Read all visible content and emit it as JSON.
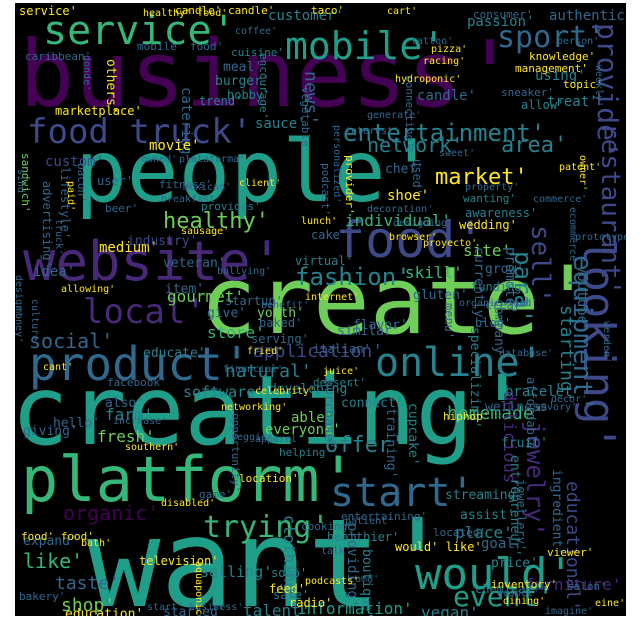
{
  "palette": {
    "purple": "#440154",
    "indigo": "#482878",
    "blue": "#3e4989",
    "slate": "#31688e",
    "teal": "#26828e",
    "sea": "#1f9e89",
    "green": "#35b779",
    "lime": "#6ece58",
    "yellow": "#fde725"
  },
  "words": [
    {
      "text": "business'",
      "color": "purple"
    },
    {
      "text": "people'",
      "color": "sea"
    },
    {
      "text": "want'",
      "color": "sea"
    },
    {
      "text": "creating'",
      "color": "sea"
    },
    {
      "text": "create'",
      "color": "lime"
    },
    {
      "text": "food'",
      "color": "blue"
    },
    {
      "text": "website'",
      "color": "indigo"
    },
    {
      "text": "platform'",
      "color": "green"
    },
    {
      "text": "product'",
      "color": "slate"
    },
    {
      "text": "service'",
      "color": "green"
    },
    {
      "text": "mobile'",
      "color": "sea"
    },
    {
      "text": "would'",
      "color": "sea"
    },
    {
      "text": "online'",
      "color": "teal"
    },
    {
      "text": "start'",
      "color": "slate"
    },
    {
      "text": "food truck'",
      "color": "blue"
    },
    {
      "text": "sport'",
      "color": "slate"
    },
    {
      "text": "local'",
      "color": "indigo"
    },
    {
      "text": "trying'",
      "color": "green"
    },
    {
      "text": "entertainment'",
      "color": "teal"
    },
    {
      "text": "looking'",
      "color": "blue"
    },
    {
      "text": "provide'",
      "color": "blue"
    },
    {
      "text": "restaurant'",
      "color": "blue"
    },
    {
      "text": "fashion'",
      "color": "teal"
    },
    {
      "text": "network'",
      "color": "teal"
    },
    {
      "text": "area'",
      "color": "teal"
    },
    {
      "text": "market'",
      "color": "yellow"
    },
    {
      "text": "healthy'",
      "color": "lime"
    },
    {
      "text": "social'",
      "color": "slate"
    },
    {
      "text": "event'",
      "color": "sea"
    },
    {
      "text": "organic'",
      "color": "purple"
    },
    {
      "text": "equipment'",
      "color": "slate"
    },
    {
      "text": "starting'",
      "color": "teal"
    },
    {
      "text": "jewelry'",
      "color": "indigo"
    },
    {
      "text": "sell'",
      "color": "blue"
    },
    {
      "text": "para'",
      "color": "teal"
    },
    {
      "text": "homemade'",
      "color": "green"
    },
    {
      "text": "natural'",
      "color": "teal"
    },
    {
      "text": "application'",
      "color": "blue"
    },
    {
      "text": "offer'",
      "color": "teal"
    },
    {
      "text": "shop'",
      "color": "lime"
    },
    {
      "text": "taste'",
      "color": "slate"
    },
    {
      "text": "like'",
      "color": "green"
    },
    {
      "text": "fresh'",
      "color": "lime"
    },
    {
      "text": "farm'",
      "color": "teal"
    },
    {
      "text": "place'",
      "color": "teal"
    },
    {
      "text": "goal'",
      "color": "slate"
    },
    {
      "text": "store'",
      "color": "green"
    },
    {
      "text": "youtube'",
      "color": "slate"
    },
    {
      "text": "gourmet'",
      "color": "lime"
    },
    {
      "text": "individual'",
      "color": "green"
    },
    {
      "text": "skill'",
      "color": "green"
    },
    {
      "text": "site'",
      "color": "lime"
    },
    {
      "text": "customer'",
      "color": "teal"
    },
    {
      "text": "passion'",
      "color": "teal"
    },
    {
      "text": "authentic'",
      "color": "slate"
    },
    {
      "text": "educational'",
      "color": "blue"
    },
    {
      "text": "vegan'",
      "color": "teal"
    },
    {
      "text": "clothing'",
      "color": "teal"
    },
    {
      "text": "talent'",
      "color": "teal"
    },
    {
      "text": "information'",
      "color": "sea"
    },
    {
      "text": "started'",
      "color": "slate"
    },
    {
      "text": "education'",
      "color": "yellow"
    },
    {
      "text": "selling'",
      "color": "teal"
    },
    {
      "text": "software'",
      "color": "teal"
    },
    {
      "text": "medium'",
      "color": "yellow"
    },
    {
      "text": "news'",
      "color": "slate"
    },
    {
      "text": "custom'",
      "color": "blue"
    },
    {
      "text": "idea'",
      "color": "slate"
    },
    {
      "text": "catering'",
      "color": "slate"
    },
    {
      "text": "treat'",
      "color": "teal"
    },
    {
      "text": "using'",
      "color": "teal"
    },
    {
      "text": "candle'",
      "color": "slate"
    },
    {
      "text": "burger'",
      "color": "teal"
    },
    {
      "text": "meal'",
      "color": "slate"
    },
    {
      "text": "hobby'",
      "color": "teal"
    },
    {
      "text": "sauce'",
      "color": "teal"
    },
    {
      "text": "movie'",
      "color": "yellow"
    },
    {
      "text": "chef'",
      "color": "slate"
    },
    {
      "text": "shoe'",
      "color": "yellow"
    },
    {
      "text": "veteran'",
      "color": "slate"
    },
    {
      "text": "industry'",
      "color": "blue"
    },
    {
      "text": "give'",
      "color": "slate"
    },
    {
      "text": "item'",
      "color": "slate"
    },
    {
      "text": "educate'",
      "color": "teal"
    },
    {
      "text": "able'",
      "color": "lime"
    },
    {
      "text": "everyone'",
      "color": "lime"
    },
    {
      "text": "also'",
      "color": "slate"
    },
    {
      "text": "hello'",
      "color": "slate"
    },
    {
      "text": "expand'",
      "color": "slate"
    },
    {
      "text": "giving'",
      "color": "slate"
    },
    {
      "text": "delicious'",
      "color": "indigo"
    },
    {
      "text": "purchase'",
      "color": "slate"
    },
    {
      "text": "training'",
      "color": "slate"
    },
    {
      "text": "cupcake'",
      "color": "teal"
    },
    {
      "text": "bracelet'",
      "color": "teal"
    },
    {
      "text": "wellness'",
      "color": "slate"
    },
    {
      "text": "fruit'",
      "color": "teal"
    },
    {
      "text": "streaming'",
      "color": "teal"
    },
    {
      "text": "assist'",
      "color": "teal"
    },
    {
      "text": "price'",
      "color": "teal"
    },
    {
      "text": "providing'",
      "color": "slate"
    },
    {
      "text": "connect'",
      "color": "teal"
    },
    {
      "text": "developing'",
      "color": "teal"
    },
    {
      "text": "similar'",
      "color": "slate"
    },
    {
      "text": "specializing'",
      "color": "teal"
    },
    {
      "text": "promote'",
      "color": "slate"
    },
    {
      "text": "company'",
      "color": "slate"
    },
    {
      "text": "affordable'",
      "color": "slate"
    },
    {
      "text": "entrepreneur'",
      "color": "teal"
    },
    {
      "text": "jewellery'",
      "color": "slate"
    },
    {
      "text": "ingredient'",
      "color": "slate"
    },
    {
      "text": "furniture'",
      "color": "indigo"
    },
    {
      "text": "chemical'",
      "color": "teal"
    },
    {
      "text": "boutique'",
      "color": "teal"
    },
    {
      "text": "feed'",
      "color": "yellow"
    },
    {
      "text": "soap'",
      "color": "teal"
    },
    {
      "text": "safe'",
      "color": "teal"
    },
    {
      "text": "radio'",
      "color": "yellow"
    },
    {
      "text": "vegetable'",
      "color": "slate"
    },
    {
      "text": "interest'",
      "color": "slate"
    },
    {
      "text": "grow'",
      "color": "slate"
    },
    {
      "text": "gluten'",
      "color": "slate"
    },
    {
      "text": "blog'",
      "color": "slate"
    },
    {
      "text": "currently'",
      "color": "slate"
    },
    {
      "text": "funding'",
      "color": "teal"
    },
    {
      "text": "crear'",
      "color": "slate"
    },
    {
      "text": "menu'",
      "color": "slate"
    },
    {
      "text": "flavor'",
      "color": "slate"
    },
    {
      "text": "italian'",
      "color": "slate"
    },
    {
      "text": "youth'",
      "color": "lime"
    },
    {
      "text": "baked'",
      "color": "slate"
    },
    {
      "text": "serving'",
      "color": "slate"
    },
    {
      "text": "startup'",
      "color": "slate"
    },
    {
      "text": "cake'",
      "color": "slate"
    },
    {
      "text": "virtual'",
      "color": "teal"
    },
    {
      "text": "wedding'",
      "color": "yellow"
    },
    {
      "text": "awareness'",
      "color": "teal"
    },
    {
      "text": "consumer'",
      "color": "slate"
    },
    {
      "text": "knowledge'",
      "color": "yellow"
    },
    {
      "text": "management'",
      "color": "yellow"
    },
    {
      "text": "topic'",
      "color": "yellow"
    },
    {
      "text": "sneaker'",
      "color": "slate"
    },
    {
      "text": "allow'",
      "color": "teal"
    },
    {
      "text": "others'",
      "color": "yellow"
    },
    {
      "text": "encourage'",
      "color": "teal"
    },
    {
      "text": "connecting'",
      "color": "slate"
    },
    {
      "text": "cuisine'",
      "color": "teal"
    },
    {
      "text": "trend'",
      "color": "teal"
    },
    {
      "text": "marketplace'",
      "color": "yellow"
    },
    {
      "text": "caribbean'",
      "color": "slate"
    },
    {
      "text": "sandwich'",
      "color": "lime"
    },
    {
      "text": "advertising'",
      "color": "slate"
    },
    {
      "text": "lifestyle'",
      "color": "slate"
    },
    {
      "text": "user'",
      "color": "slate"
    },
    {
      "text": "bacon'",
      "color": "slate"
    },
    {
      "text": "beer'",
      "color": "slate"
    },
    {
      "text": "fitness'",
      "color": "slate"
    },
    {
      "text": "podcast'",
      "color": "slate"
    },
    {
      "text": "personalized'",
      "color": "slate"
    },
    {
      "text": "provider'",
      "color": "yellow"
    },
    {
      "text": "used'",
      "color": "slate"
    },
    {
      "text": "wanting'",
      "color": "teal"
    },
    {
      "text": "salon'",
      "color": "slate"
    },
    {
      "text": "bakery'",
      "color": "slate"
    },
    {
      "text": "television'",
      "color": "yellow"
    },
    {
      "text": "healthier'",
      "color": "teal"
    },
    {
      "text": "cooking'",
      "color": "slate"
    },
    {
      "text": "entertaining'",
      "color": "slate"
    },
    {
      "text": "located'",
      "color": "slate"
    },
    {
      "text": "location'",
      "color": "yellow"
    },
    {
      "text": "game'",
      "color": "slate"
    },
    {
      "text": "helping'",
      "color": "teal"
    },
    {
      "text": "opportunity'",
      "color": "slate"
    },
    {
      "text": "dessert'",
      "color": "teal"
    },
    {
      "text": "facebook'",
      "color": "slate"
    },
    {
      "text": "inventory'",
      "color": "yellow"
    },
    {
      "text": "service'",
      "color": "yellow"
    },
    {
      "text": "candle' candle'",
      "color": "yellow"
    },
    {
      "text": "taco'",
      "color": "yellow"
    },
    {
      "text": "mobile' food'",
      "color": "slate"
    },
    {
      "text": "would' like'",
      "color": "yellow"
    },
    {
      "text": "food' food'",
      "color": "yellow"
    },
    {
      "text": "start' business'",
      "color": "slate"
    },
    {
      "text": "aquaponics'",
      "color": "yellow"
    },
    {
      "text": "imagine'",
      "color": "slate"
    },
    {
      "text": "eine'",
      "color": "yellow"
    },
    {
      "text": "hiphop'",
      "color": "yellow"
    },
    {
      "text": "dining'",
      "color": "yellow"
    },
    {
      "text": "patient'",
      "color": "slate"
    },
    {
      "text": "viewer'",
      "color": "yellow"
    },
    {
      "text": "provides'",
      "color": "teal"
    },
    {
      "text": "client'",
      "color": "yellow"
    },
    {
      "text": "owned'",
      "color": "slate"
    },
    {
      "text": "lunch'",
      "color": "yellow"
    },
    {
      "text": "pizza'",
      "color": "yellow"
    },
    {
      "text": "breakfast'",
      "color": "slate"
    },
    {
      "text": "tattoo'",
      "color": "slate"
    },
    {
      "text": "coffee'",
      "color": "slate"
    },
    {
      "text": "hydroponic'",
      "color": "yellow"
    },
    {
      "text": "racing'",
      "color": "yellow"
    },
    {
      "text": "paid'",
      "color": "yellow"
    },
    {
      "text": "sind'",
      "color": "slate"
    },
    {
      "text": "design'",
      "color": "slate"
    },
    {
      "text": "money'",
      "color": "slate"
    },
    {
      "text": "culture'",
      "color": "slate"
    },
    {
      "text": "truck'",
      "color": "slate"
    },
    {
      "text": "sausage'",
      "color": "yellow"
    },
    {
      "text": "internet'",
      "color": "yellow"
    },
    {
      "text": "proyecto'",
      "color": "yellow"
    },
    {
      "text": "fried'",
      "color": "yellow"
    },
    {
      "text": "financial'",
      "color": "slate"
    },
    {
      "text": "juice'",
      "color": "yellow"
    },
    {
      "text": "database'",
      "color": "slate"
    },
    {
      "text": "networking'",
      "color": "yellow"
    },
    {
      "text": "disabled'",
      "color": "yellow"
    },
    {
      "text": "como'",
      "color": "slate"
    },
    {
      "text": "podcasts'",
      "color": "yellow"
    },
    {
      "text": "bath'",
      "color": "yellow"
    },
    {
      "text": "cant'",
      "color": "yellow"
    },
    {
      "text": "increase'",
      "color": "slate"
    },
    {
      "text": "southern'",
      "color": "yellow"
    },
    {
      "text": "apparel'",
      "color": "slate"
    },
    {
      "text": "celebrity'",
      "color": "yellow"
    },
    {
      "text": "gospel'",
      "color": "slate"
    },
    {
      "text": "talk'",
      "color": "slate"
    },
    {
      "text": "weekly'",
      "color": "slate"
    },
    {
      "text": "owner'",
      "color": "yellow"
    },
    {
      "text": "werden'",
      "color": "slate"
    },
    {
      "text": "ecommerce'",
      "color": "slate"
    },
    {
      "text": "prototype'",
      "color": "slate"
    },
    {
      "text": "organic food'",
      "color": "slate"
    },
    {
      "text": "bullying'",
      "color": "slate"
    },
    {
      "text": "mexican'",
      "color": "slate"
    },
    {
      "text": "donde'",
      "color": "slate"
    },
    {
      "text": "plataforma'",
      "color": "slate"
    },
    {
      "text": "generate'",
      "color": "slate"
    },
    {
      "text": "designing'",
      "color": "slate"
    },
    {
      "text": "decoration'",
      "color": "slate"
    },
    {
      "text": "browser'",
      "color": "yellow"
    },
    {
      "text": "allowing'",
      "color": "yellow"
    },
    {
      "text": "person'",
      "color": "slate"
    },
    {
      "text": "cart'",
      "color": "yellow"
    },
    {
      "text": "healthy' food'",
      "color": "yellow"
    },
    {
      "text": "sweet'",
      "color": "slate"
    },
    {
      "text": "patent'",
      "color": "yellow"
    },
    {
      "text": "benefit'",
      "color": "slate"
    },
    {
      "text": "savory'",
      "color": "slate"
    },
    {
      "text": "veggie'",
      "color": "slate"
    },
    {
      "text": "property'",
      "color": "slate"
    },
    {
      "text": "commerce'",
      "color": "slate"
    },
    {
      "text": "decor'",
      "color": "slate"
    },
    {
      "text": "sugar'",
      "color": "slate"
    },
    {
      "text": "ice'",
      "color": "slate"
    },
    {
      "text": "many'",
      "color": "slate"
    },
    {
      "text": "cost'",
      "color": "slate"
    },
    {
      "text": "engaging'",
      "color": "slate"
    }
  ]
}
